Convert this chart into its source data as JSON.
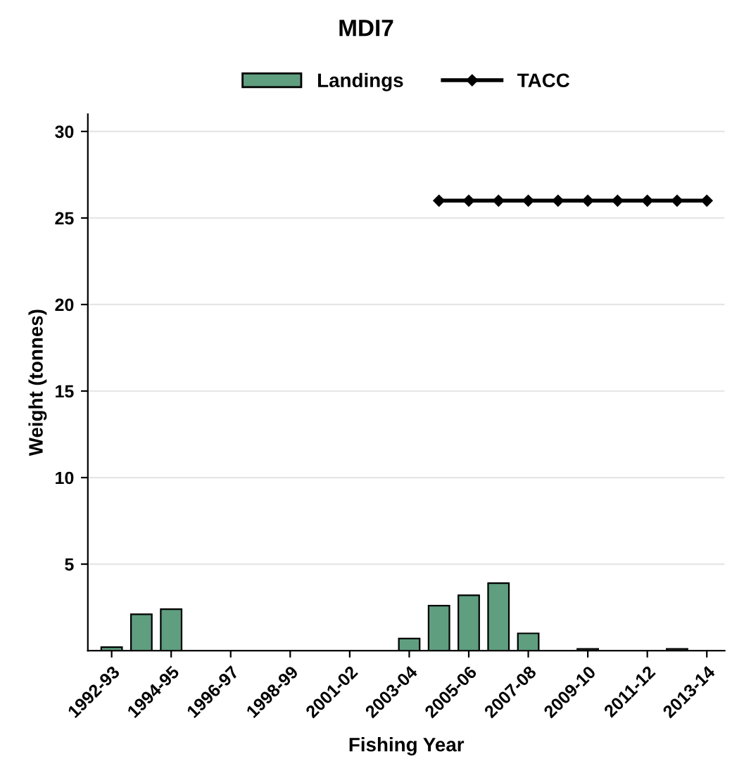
{
  "chart_data": {
    "type": "bar",
    "title": "MDI7",
    "xlabel": "Fishing Year",
    "ylabel": "Weight (tonnes)",
    "categories": [
      "1992-93",
      null,
      "1994-95",
      null,
      "1996-97",
      null,
      "1998-99",
      null,
      "2001-02",
      null,
      "2003-04",
      null,
      "2005-06",
      null,
      "2007-08",
      null,
      "2009-10",
      null,
      "2011-12",
      null,
      "2013-14"
    ],
    "series": [
      {
        "name": "Landings",
        "color": "#5f9e7f",
        "values": [
          0.2,
          2.1,
          2.4,
          null,
          null,
          null,
          null,
          null,
          null,
          null,
          0.7,
          2.6,
          3.2,
          3.9,
          1.0,
          null,
          0.1,
          null,
          null,
          0.1,
          null
        ]
      },
      {
        "name": "TACC",
        "type": "line",
        "color": "#000000",
        "marker": "diamond",
        "values": [
          null,
          null,
          null,
          null,
          null,
          null,
          null,
          null,
          null,
          null,
          null,
          26,
          26,
          26,
          26,
          26,
          26,
          26,
          26,
          26,
          26
        ]
      }
    ],
    "ylim": [
      0,
      31
    ],
    "yticks": [
      5,
      10,
      15,
      20,
      25,
      30
    ],
    "grid": "y",
    "legend": "top"
  }
}
